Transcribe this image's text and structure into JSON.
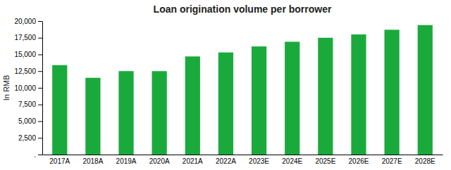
{
  "chart_data": {
    "type": "bar",
    "title": "Loan origination volume per borrower",
    "ylabel": "In RMB",
    "categories": [
      "2017A",
      "2018A",
      "2019A",
      "2020A",
      "2021A",
      "2022A",
      "2023E",
      "2024E",
      "2025E",
      "2026E",
      "2027E",
      "2028E"
    ],
    "values": [
      13400,
      11500,
      12500,
      12500,
      14700,
      15300,
      16200,
      16900,
      17500,
      18000,
      18700,
      19400
    ],
    "color": "#1aaa3c",
    "ylim": [
      0,
      20000
    ],
    "yticks": [
      {
        "value": 0,
        "label": "."
      },
      {
        "value": 2500,
        "label": "2,500"
      },
      {
        "value": 5000,
        "label": "5,000"
      },
      {
        "value": 7500,
        "label": "7,500"
      },
      {
        "value": 10000,
        "label": "10,000"
      },
      {
        "value": 12500,
        "label": "12,500"
      },
      {
        "value": 15000,
        "label": "15,000"
      },
      {
        "value": 17500,
        "label": "17,500"
      },
      {
        "value": 20000,
        "label": "20,000"
      }
    ],
    "grid": false
  }
}
